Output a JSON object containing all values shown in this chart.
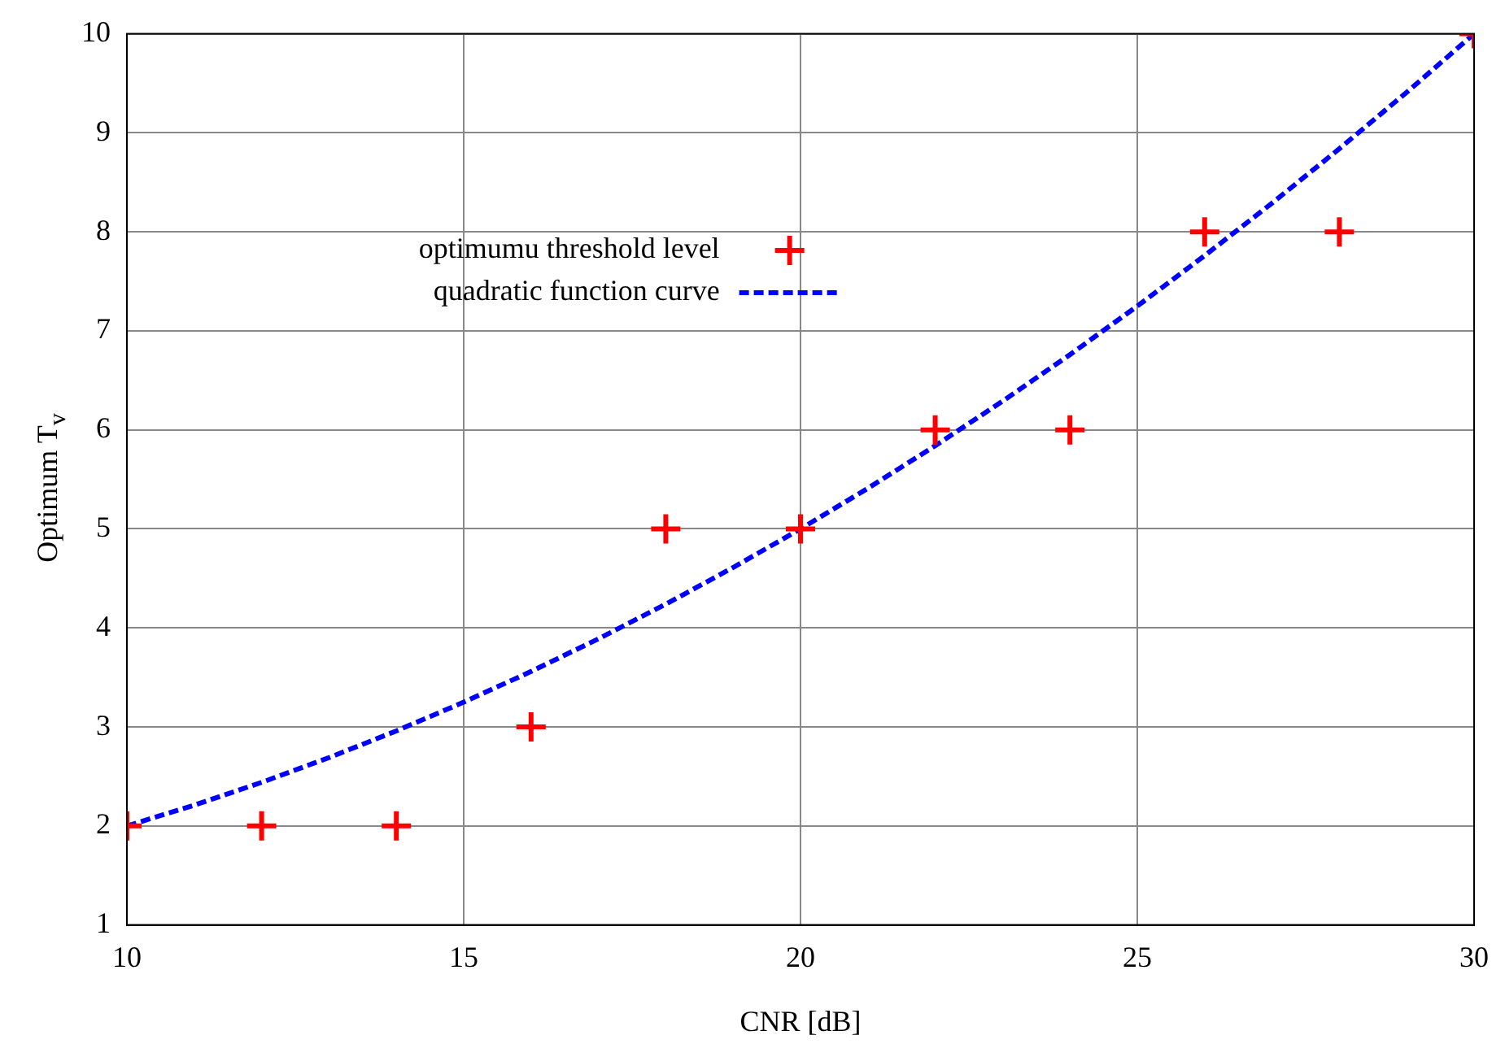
{
  "chart_data": {
    "type": "scatter",
    "xlabel": "CNR [dB]",
    "ylabel": "Optimum T$_{v}$",
    "xlim": [
      10,
      30
    ],
    "xticks": [
      10,
      15,
      20,
      25,
      30
    ],
    "ylim": [
      1,
      10
    ],
    "yticks": [
      1,
      2,
      3,
      4,
      5,
      6,
      7,
      8,
      9,
      10
    ],
    "grid": true,
    "legend": "top left",
    "line_style": "dashed",
    "series": [
      {
        "name": "optimumu threshold level",
        "type": "scatter",
        "marker": "cross",
        "color": "#ff0000",
        "x": [
          10,
          12,
          14,
          16,
          18,
          20,
          22,
          24,
          26,
          28,
          30
        ],
        "values": [
          2,
          2,
          2,
          3,
          5,
          5,
          6,
          6,
          8,
          8,
          10
        ]
      },
      {
        "name": "quadratic function curve",
        "type": "line",
        "marker": "none",
        "color": "#0000ff",
        "x": [
          10,
          11,
          12,
          13,
          14,
          15,
          16,
          17,
          18,
          19,
          20,
          21,
          22,
          23,
          24,
          25,
          26,
          27,
          28,
          29,
          30
        ],
        "values": [
          2,
          2.21,
          2.44,
          2.69,
          2.96,
          3.25,
          3.56,
          3.89,
          4.24,
          4.61,
          5,
          5.41,
          5.84,
          6.29,
          6.76,
          7.25,
          7.76,
          8.29,
          8.84,
          9.41,
          10
        ]
      }
    ]
  }
}
